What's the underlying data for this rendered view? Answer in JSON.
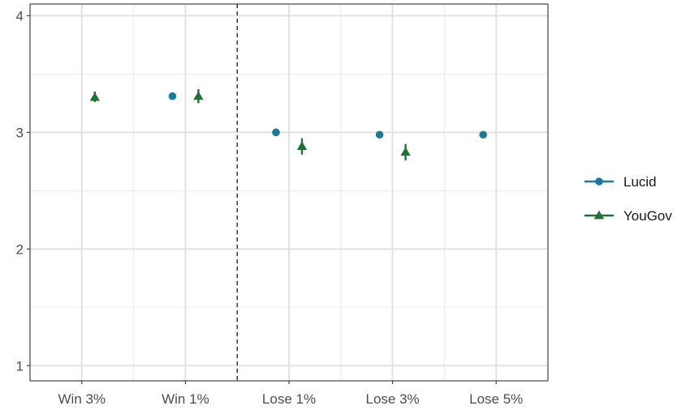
{
  "chart_data": {
    "type": "scatter",
    "title": "",
    "xlabel": "",
    "ylabel": "",
    "categories": [
      "Win 3%",
      "Win 1%",
      "Lose 1%",
      "Lose 3%",
      "Lose 5%"
    ],
    "ylim": [
      0.87,
      4.1
    ],
    "yticks": [
      1,
      2,
      3,
      4
    ],
    "grid": true,
    "divider_between": [
      "Win 1%",
      "Lose 1%"
    ],
    "legend_position": "right",
    "series": [
      {
        "name": "Lucid",
        "color": "#1B7A99",
        "marker": "circle",
        "points": [
          {
            "category": "Win 1%",
            "y": 3.31,
            "lo": 3.3,
            "hi": 3.32
          },
          {
            "category": "Lose 1%",
            "y": 3.0,
            "lo": 2.98,
            "hi": 3.03
          },
          {
            "category": "Lose 3%",
            "y": 2.98,
            "lo": 2.95,
            "hi": 3.0
          },
          {
            "category": "Lose 5%",
            "y": 2.98,
            "lo": 2.96,
            "hi": 3.01
          }
        ]
      },
      {
        "name": "YouGov",
        "color": "#1E7233",
        "marker": "triangle",
        "points": [
          {
            "category": "Win 3%",
            "y": 3.3,
            "lo": 3.26,
            "hi": 3.35
          },
          {
            "category": "Win 1%",
            "y": 3.31,
            "lo": 3.25,
            "hi": 3.37
          },
          {
            "category": "Lose 1%",
            "y": 2.88,
            "lo": 2.81,
            "hi": 2.95
          },
          {
            "category": "Lose 3%",
            "y": 2.83,
            "lo": 2.76,
            "hi": 2.9
          }
        ]
      }
    ]
  }
}
